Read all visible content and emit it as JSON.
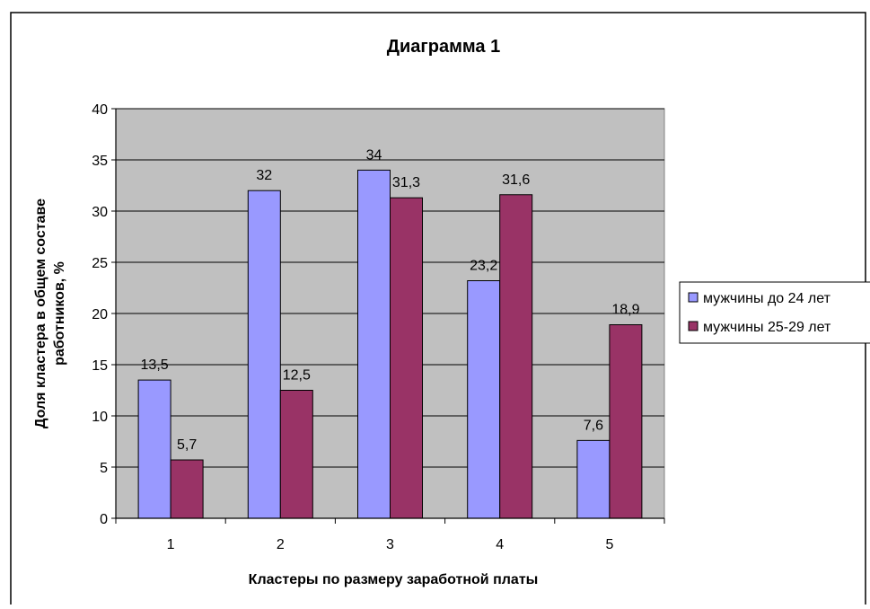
{
  "chart_data": {
    "type": "bar",
    "title": "Диаграмма 1",
    "xlabel": "Кластеры по размеру заработной платы",
    "ylabel": "Доля кластера  в общем составе работников, %",
    "ylabel_lines": [
      "Доля кластера  в общем составе",
      "работников, %"
    ],
    "categories": [
      "1",
      "2",
      "3",
      "4",
      "5"
    ],
    "ylim": [
      0,
      40
    ],
    "yticks": [
      "0",
      "5",
      "10",
      "15",
      "20",
      "25",
      "30",
      "35",
      "40"
    ],
    "grid": true,
    "legend_position": "right",
    "series": [
      {
        "name": "мужчины до 24 лет",
        "color": "#9999ff",
        "values": [
          13.5,
          32,
          34,
          23.2,
          7.6
        ],
        "labels": [
          "13,5",
          "32",
          "34",
          "23,2",
          "7,6"
        ]
      },
      {
        "name": "мужчины 25-29 лет",
        "color": "#993366",
        "values": [
          5.7,
          12.5,
          31.3,
          31.6,
          18.9
        ],
        "labels": [
          "5,7",
          "12,5",
          "31,3",
          "31,6",
          "18,9"
        ]
      }
    ],
    "plot_background": "#c0c0c0"
  }
}
